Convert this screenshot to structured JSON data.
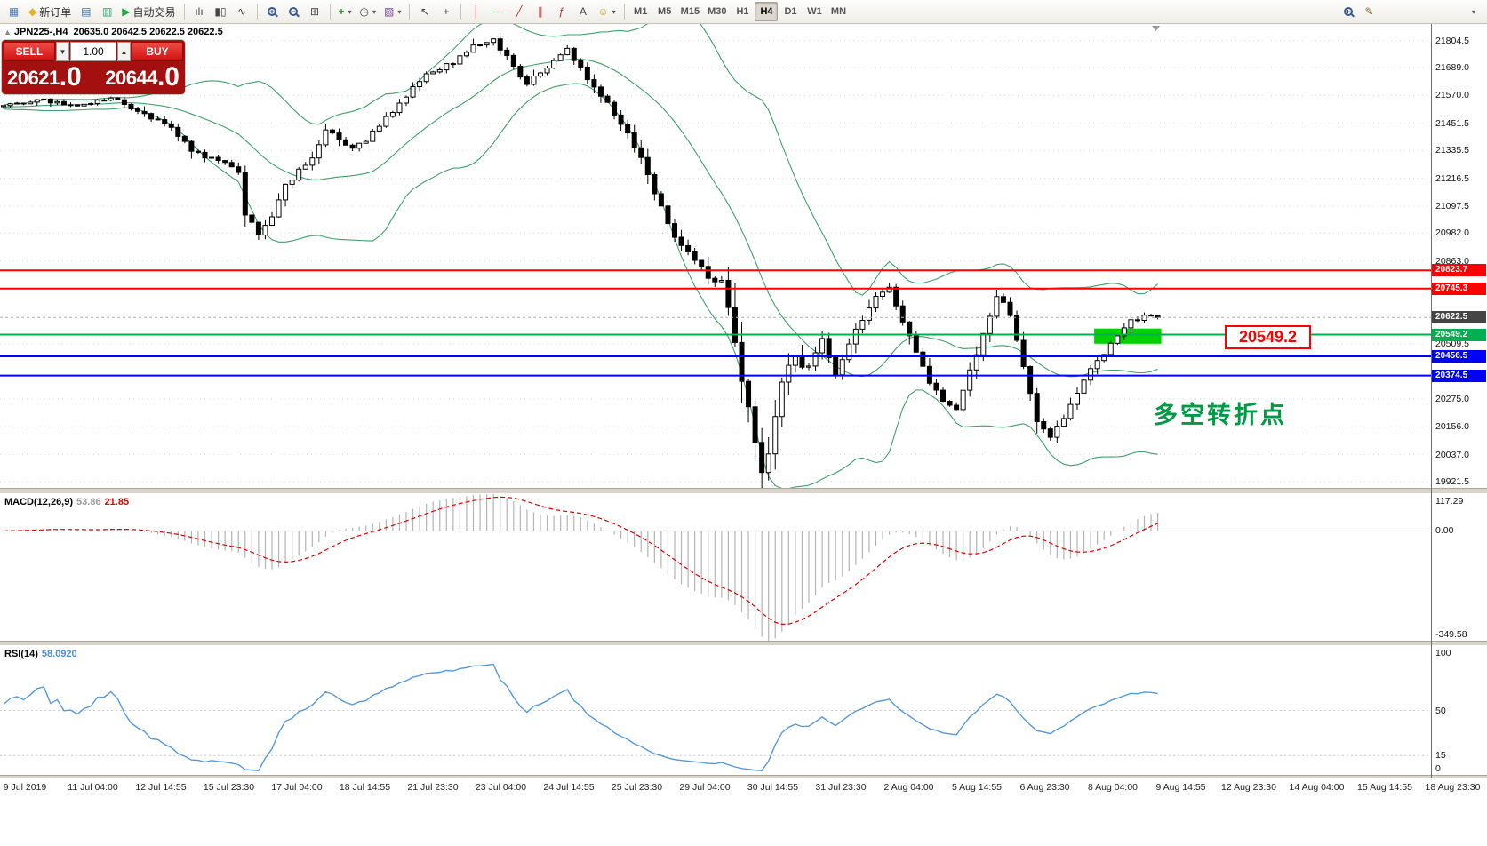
{
  "colors": {
    "accent_red": "#ff0000",
    "accent_blue": "#0000ff",
    "accent_green": "#00b050",
    "zone_green": "#00d200",
    "bb_green": "#3fa06a",
    "rsi_blue": "#5599dd",
    "macd_hist": "#b4b4b4",
    "macd_signal": "#e00000",
    "current_price_tag": "#454545",
    "annotation_green": "#009944",
    "panel_red": "#a40f10"
  },
  "toolbar": {
    "new_order_label": "新订单",
    "autotrading_label": "自动交易",
    "timeframes": [
      "M1",
      "M5",
      "M15",
      "M30",
      "H1",
      "H4",
      "D1",
      "W1",
      "MN"
    ],
    "active_timeframe": "H4",
    "icons": {
      "chart_window": "▦",
      "diamond": "◆",
      "market_watch": "▤",
      "data_window": "▥",
      "autotrading_play": "▶",
      "bars": "ılı",
      "candles": "▮▯",
      "line_chart": "∿",
      "tile": "⊞",
      "indicators": "+",
      "periods": "◷",
      "templates": "▧",
      "cursor": "↖",
      "crosshair": "+",
      "vline": "│",
      "hline": "─",
      "trendline": "╱",
      "channel": "∥",
      "fibonacci": "ƒ",
      "text": "A",
      "arrows": "☺",
      "caret": "▾",
      "pencil": "✎",
      "collapse": "▲",
      "spin_down": "▼",
      "spin_up": "▲",
      "zoom_in_sign": "+",
      "zoom_out_sign": "−",
      "overflow": "▾"
    }
  },
  "chart": {
    "symbol_info": "JPN225-,H4",
    "ohlc": "20635.0 20642.5 20622.5 20622.5",
    "trade_panel": {
      "sell_label": "SELL",
      "buy_label": "BUY",
      "volume": "1.00",
      "sell_price_main": "20621",
      "sell_price_pips": ".0",
      "buy_price_main": "20644",
      "buy_price_pips": ".0"
    },
    "pivot_label": "20549.2",
    "annotation": "多空转折点"
  },
  "chart_data": {
    "type": "candlestick",
    "symbol": "JPN225-,H4",
    "timeframe": "H4",
    "candles": 173,
    "ylim": [
      19895,
      21875
    ],
    "current_price": 20622.5,
    "price_axis_labels": [
      21804.5,
      21689.0,
      21570.0,
      21451.5,
      21335.5,
      21216.5,
      21097.5,
      20982.0,
      20863.0,
      20509.5,
      20275.0,
      20156.0,
      20037.0,
      19921.5
    ],
    "time_axis_labels": [
      "9 Jul 2019",
      "11 Jul 04:00",
      "12 Jul 14:55",
      "15 Jul 23:30",
      "17 Jul 04:00",
      "18 Jul 14:55",
      "21 Jul 23:30",
      "23 Jul 04:00",
      "24 Jul 14:55",
      "25 Jul 23:30",
      "29 Jul 04:00",
      "30 Jul 14:55",
      "31 Jul 23:30",
      "2 Aug 04:00",
      "5 Aug 14:55",
      "6 Aug 23:30",
      "8 Aug 04:00",
      "9 Aug 14:55",
      "12 Aug 23:30",
      "14 Aug 04:00",
      "15 Aug 14:55",
      "18 Aug 23:30"
    ],
    "levels": [
      {
        "value": 20823.7,
        "color": "#ff0000",
        "type": "resistance"
      },
      {
        "value": 20745.3,
        "color": "#ff0000",
        "type": "resistance"
      },
      {
        "value": 20549.2,
        "color": "#00b050",
        "type": "pivot"
      },
      {
        "value": 20456.5,
        "color": "#0000ff",
        "type": "support"
      },
      {
        "value": 20374.5,
        "color": "#0000ff",
        "type": "support"
      }
    ],
    "zone": {
      "from_value": 20575,
      "to_value": 20510,
      "from_index": 163,
      "to_index": 173
    },
    "price_waypoints": [
      [
        0,
        21520
      ],
      [
        5,
        21555
      ],
      [
        11,
        21525
      ],
      [
        16,
        21560
      ],
      [
        20,
        21505
      ],
      [
        25,
        21430
      ],
      [
        28,
        21330
      ],
      [
        32,
        21290
      ],
      [
        35,
        21240
      ],
      [
        36,
        21070
      ],
      [
        38,
        20980
      ],
      [
        40,
        21060
      ],
      [
        42,
        21180
      ],
      [
        46,
        21310
      ],
      [
        48,
        21420
      ],
      [
        52,
        21340
      ],
      [
        54,
        21380
      ],
      [
        57,
        21470
      ],
      [
        60,
        21560
      ],
      [
        62,
        21640
      ],
      [
        65,
        21680
      ],
      [
        68,
        21730
      ],
      [
        70,
        21790
      ],
      [
        73,
        21805
      ],
      [
        75,
        21735
      ],
      [
        78,
        21620
      ],
      [
        81,
        21690
      ],
      [
        84,
        21770
      ],
      [
        87,
        21640
      ],
      [
        90,
        21530
      ],
      [
        93,
        21410
      ],
      [
        95,
        21300
      ],
      [
        98,
        21090
      ],
      [
        100,
        20970
      ],
      [
        103,
        20860
      ],
      [
        105,
        20800
      ],
      [
        107,
        20790
      ],
      [
        109,
        20520
      ],
      [
        111,
        20230
      ],
      [
        113,
        19975
      ],
      [
        114,
        20040
      ],
      [
        116,
        20340
      ],
      [
        118,
        20470
      ],
      [
        120,
        20390
      ],
      [
        122,
        20540
      ],
      [
        124,
        20380
      ],
      [
        126,
        20520
      ],
      [
        128,
        20610
      ],
      [
        130,
        20710
      ],
      [
        132,
        20745
      ],
      [
        134,
        20610
      ],
      [
        136,
        20470
      ],
      [
        138,
        20340
      ],
      [
        140,
        20270
      ],
      [
        142,
        20235
      ],
      [
        144,
        20400
      ],
      [
        146,
        20545
      ],
      [
        148,
        20715
      ],
      [
        150,
        20640
      ],
      [
        152,
        20410
      ],
      [
        154,
        20175
      ],
      [
        156,
        20115
      ],
      [
        158,
        20200
      ],
      [
        160,
        20295
      ],
      [
        162,
        20395
      ],
      [
        164,
        20475
      ],
      [
        166,
        20555
      ],
      [
        168,
        20605
      ],
      [
        170,
        20635
      ],
      [
        172,
        20622.5
      ]
    ],
    "indicators": {
      "bollinger": {
        "period": 20,
        "deviation": 2
      },
      "macd": {
        "label": "MACD(12,26,9)",
        "value_main": "53.86",
        "value_signal": "21.85",
        "scale_max": 117.29,
        "scale_min": -349.58,
        "axis_labels": [
          "117.29",
          "0.00",
          "-349.58"
        ]
      },
      "rsi": {
        "label": "RSI(14)",
        "value": "58.0920",
        "axis_labels": [
          "100",
          "50",
          "15",
          "0"
        ],
        "levels": [
          50,
          15
        ]
      }
    }
  }
}
